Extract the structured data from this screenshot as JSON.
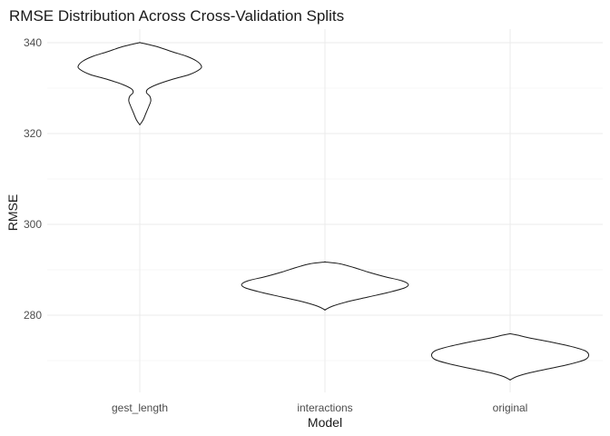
{
  "chart_data": {
    "type": "violin",
    "title": "RMSE Distribution Across Cross-Validation Splits",
    "xlabel": "Model",
    "ylabel": "RMSE",
    "categories": [
      "gest_length",
      "interactions",
      "original"
    ],
    "y_ticks": [
      280,
      300,
      320,
      340
    ],
    "ylim": [
      263,
      343
    ],
    "grid": true,
    "violins": [
      {
        "name": "gest_length",
        "profile": [
          [
            322.0,
            0.3
          ],
          [
            323.0,
            3.5
          ],
          [
            324.5,
            6.5
          ],
          [
            326.0,
            9.5
          ],
          [
            327.2,
            11.5
          ],
          [
            328.2,
            10.5
          ],
          [
            329.0,
            7.0
          ],
          [
            329.8,
            8.5
          ],
          [
            330.8,
            18.0
          ],
          [
            332.0,
            35.0
          ],
          [
            333.0,
            52.0
          ],
          [
            334.2,
            63.0
          ],
          [
            335.0,
            64.0
          ],
          [
            336.0,
            59.0
          ],
          [
            337.0,
            49.0
          ],
          [
            338.0,
            34.0
          ],
          [
            339.0,
            20.0
          ],
          [
            339.6,
            9.0
          ],
          [
            340.0,
            0.3
          ]
        ]
      },
      {
        "name": "interactions",
        "profile": [
          [
            281.2,
            0.3
          ],
          [
            282.0,
            8.0
          ],
          [
            283.0,
            24.0
          ],
          [
            284.0,
            45.0
          ],
          [
            285.0,
            66.0
          ],
          [
            286.0,
            83.0
          ],
          [
            286.8,
            87.0
          ],
          [
            287.6,
            80.0
          ],
          [
            288.5,
            62.0
          ],
          [
            289.5,
            45.0
          ],
          [
            290.5,
            30.0
          ],
          [
            291.3,
            16.0
          ],
          [
            291.7,
            0.3
          ]
        ]
      },
      {
        "name": "original",
        "profile": [
          [
            265.8,
            0.3
          ],
          [
            266.5,
            7.0
          ],
          [
            267.3,
            20.0
          ],
          [
            268.2,
            40.0
          ],
          [
            269.2,
            62.0
          ],
          [
            270.2,
            78.0
          ],
          [
            271.2,
            82.0
          ],
          [
            272.2,
            78.0
          ],
          [
            273.2,
            62.0
          ],
          [
            274.2,
            40.0
          ],
          [
            275.0,
            20.0
          ],
          [
            275.6,
            8.0
          ],
          [
            275.9,
            0.3
          ]
        ]
      }
    ]
  }
}
